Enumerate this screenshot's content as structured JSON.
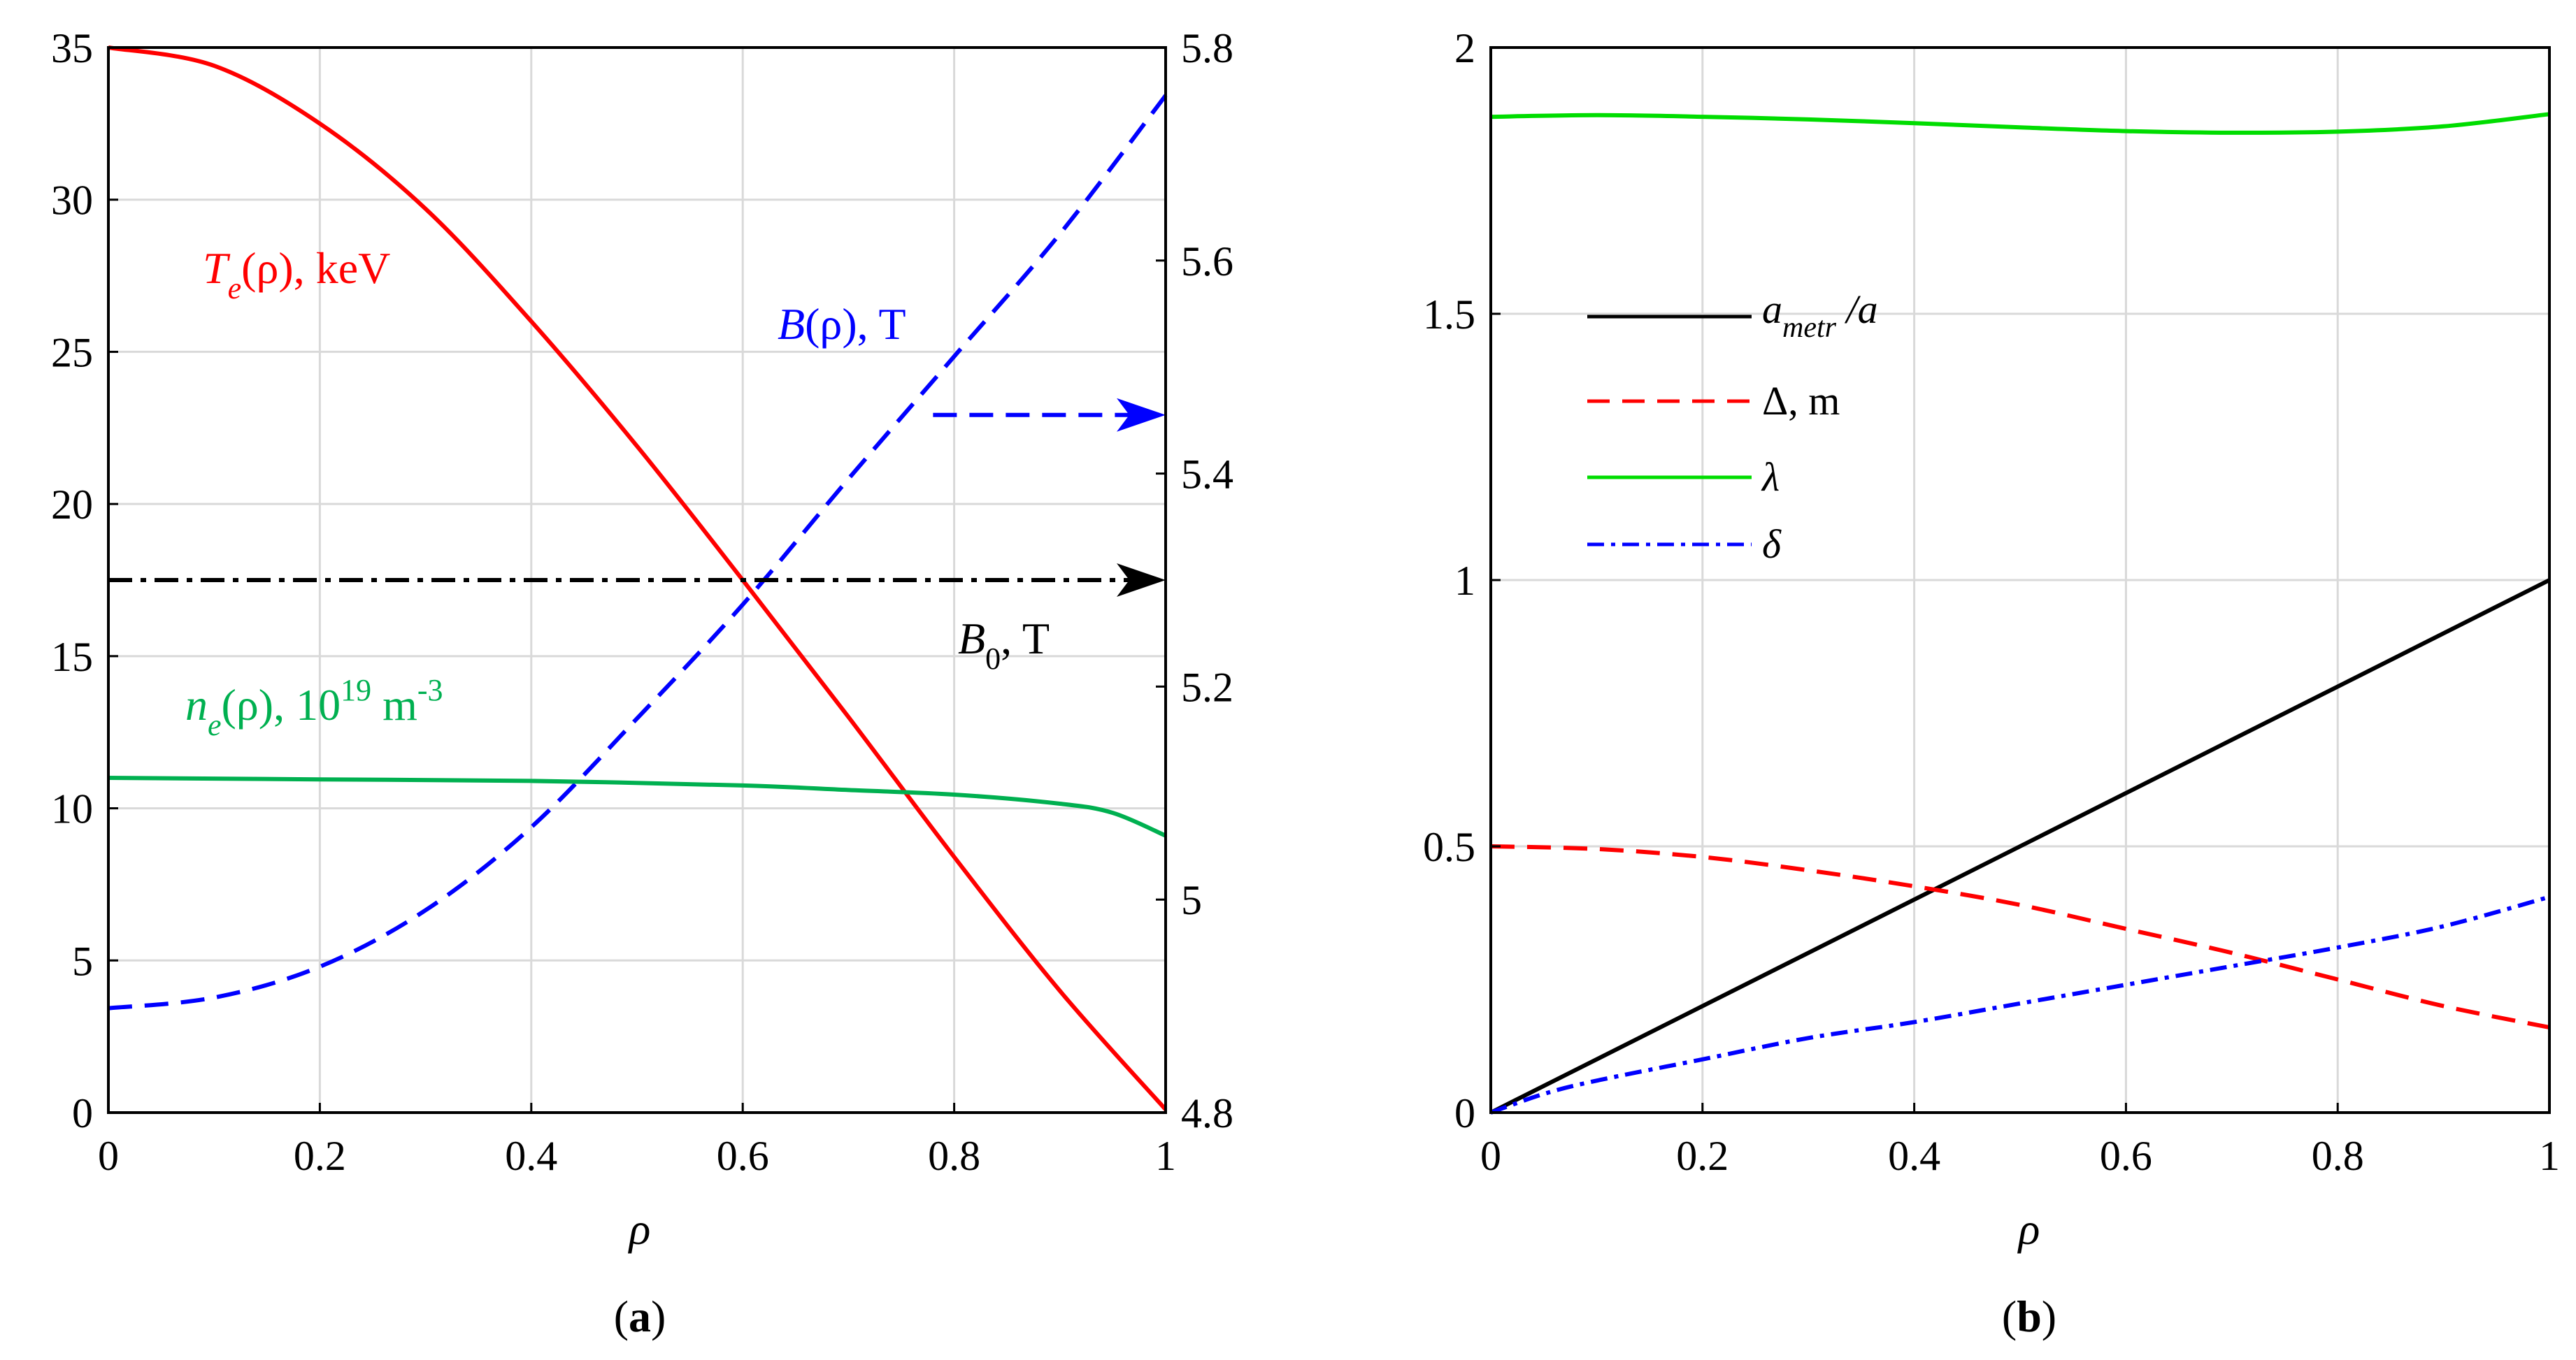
{
  "chart_data": [
    {
      "type": "line",
      "panel": "a",
      "caption": "a",
      "xlabel": "ρ",
      "xlim": [
        0,
        1
      ],
      "xticks": [
        "0",
        "0.2",
        "0.4",
        "0.6",
        "0.8",
        "1"
      ],
      "ylim_left": [
        0,
        35
      ],
      "yticks_left": [
        "0",
        "5",
        "10",
        "15",
        "20",
        "25",
        "30",
        "35"
      ],
      "ylim_right": [
        4.8,
        5.8
      ],
      "yticks_right": [
        "4.8",
        "5",
        "5.2",
        "5.4",
        "5.6",
        "5.8"
      ],
      "grid": true,
      "series": [
        {
          "name": "Te",
          "label_main": "T",
          "label_sub": "e",
          "label_tail": "(ρ), keV",
          "color": "#ff0000",
          "style": "solid",
          "axis": "left",
          "x": [
            0,
            0.1,
            0.2,
            0.3,
            0.4,
            0.5,
            0.6,
            0.7,
            0.8,
            0.9,
            1.0
          ],
          "y": [
            35,
            34.4,
            32.5,
            29.7,
            26.0,
            21.9,
            17.5,
            13.0,
            8.4,
            4.0,
            0.1
          ]
        },
        {
          "name": "B",
          "label_main": "B",
          "label_sub": "",
          "label_tail": "(ρ), T",
          "color": "#0000ff",
          "style": "dashed",
          "axis": "right",
          "x": [
            0,
            0.1,
            0.2,
            0.3,
            0.4,
            0.5,
            0.6,
            0.7,
            0.8,
            0.9,
            1.0
          ],
          "y": [
            4.898,
            4.908,
            4.937,
            4.99,
            5.068,
            5.17,
            5.277,
            5.395,
            5.51,
            5.625,
            5.755
          ]
        },
        {
          "name": "ne",
          "label_main": "n",
          "label_sub": "e",
          "label_tail": "(ρ), 10",
          "label_sup": "19",
          "label_unit": " m",
          "label_unit_sup": "-3",
          "color": "#00b050",
          "style": "solid",
          "axis": "left",
          "x": [
            0,
            0.2,
            0.4,
            0.6,
            0.7,
            0.8,
            0.9,
            0.95,
            1.0
          ],
          "y": [
            11.0,
            10.95,
            10.9,
            10.75,
            10.6,
            10.45,
            10.15,
            9.85,
            9.1
          ]
        }
      ],
      "annotations": [
        {
          "name": "B0",
          "label_main": "B",
          "label_sub": "0",
          "label_tail": ", T",
          "color": "#000000",
          "y_left": 17.5
        }
      ]
    },
    {
      "type": "line",
      "panel": "b",
      "caption": "b",
      "xlabel": "ρ",
      "xlim": [
        0,
        1
      ],
      "xticks": [
        "0",
        "0.2",
        "0.4",
        "0.6",
        "0.8",
        "1"
      ],
      "ylim": [
        0,
        2
      ],
      "yticks": [
        "0",
        "0.5",
        "1",
        "1.5",
        "2"
      ],
      "grid": true,
      "legend_position": "left-middle",
      "series": [
        {
          "name": "a_metr/a",
          "label_main": "a",
          "label_sub": "metr",
          "label_tail": " /a",
          "color": "#000000",
          "style": "solid",
          "x": [
            0,
            0.2,
            0.4,
            0.6,
            0.8,
            1.0
          ],
          "y": [
            0,
            0.2,
            0.4,
            0.6,
            0.8,
            1.0
          ]
        },
        {
          "name": "Δ",
          "label": "Δ, m",
          "color": "#ff0000",
          "style": "dashed",
          "x": [
            0,
            0.1,
            0.2,
            0.3,
            0.4,
            0.5,
            0.6,
            0.7,
            0.8,
            0.9,
            1.0
          ],
          "y": [
            0.5,
            0.495,
            0.48,
            0.455,
            0.425,
            0.39,
            0.345,
            0.3,
            0.25,
            0.2,
            0.16
          ]
        },
        {
          "name": "λ",
          "label": "λ",
          "color": "#00dd00",
          "style": "solid",
          "x": [
            0,
            0.1,
            0.2,
            0.3,
            0.4,
            0.5,
            0.6,
            0.7,
            0.8,
            0.9,
            1.0
          ],
          "y": [
            1.87,
            1.873,
            1.87,
            1.865,
            1.858,
            1.85,
            1.843,
            1.84,
            1.842,
            1.852,
            1.875
          ]
        },
        {
          "name": "δ",
          "label": "δ",
          "color": "#0000ff",
          "style": "dashdot",
          "x": [
            0,
            0.05,
            0.1,
            0.2,
            0.3,
            0.4,
            0.5,
            0.6,
            0.7,
            0.8,
            0.9,
            1.0
          ],
          "y": [
            0,
            0.035,
            0.06,
            0.1,
            0.14,
            0.17,
            0.205,
            0.24,
            0.275,
            0.31,
            0.35,
            0.405
          ]
        }
      ]
    }
  ]
}
